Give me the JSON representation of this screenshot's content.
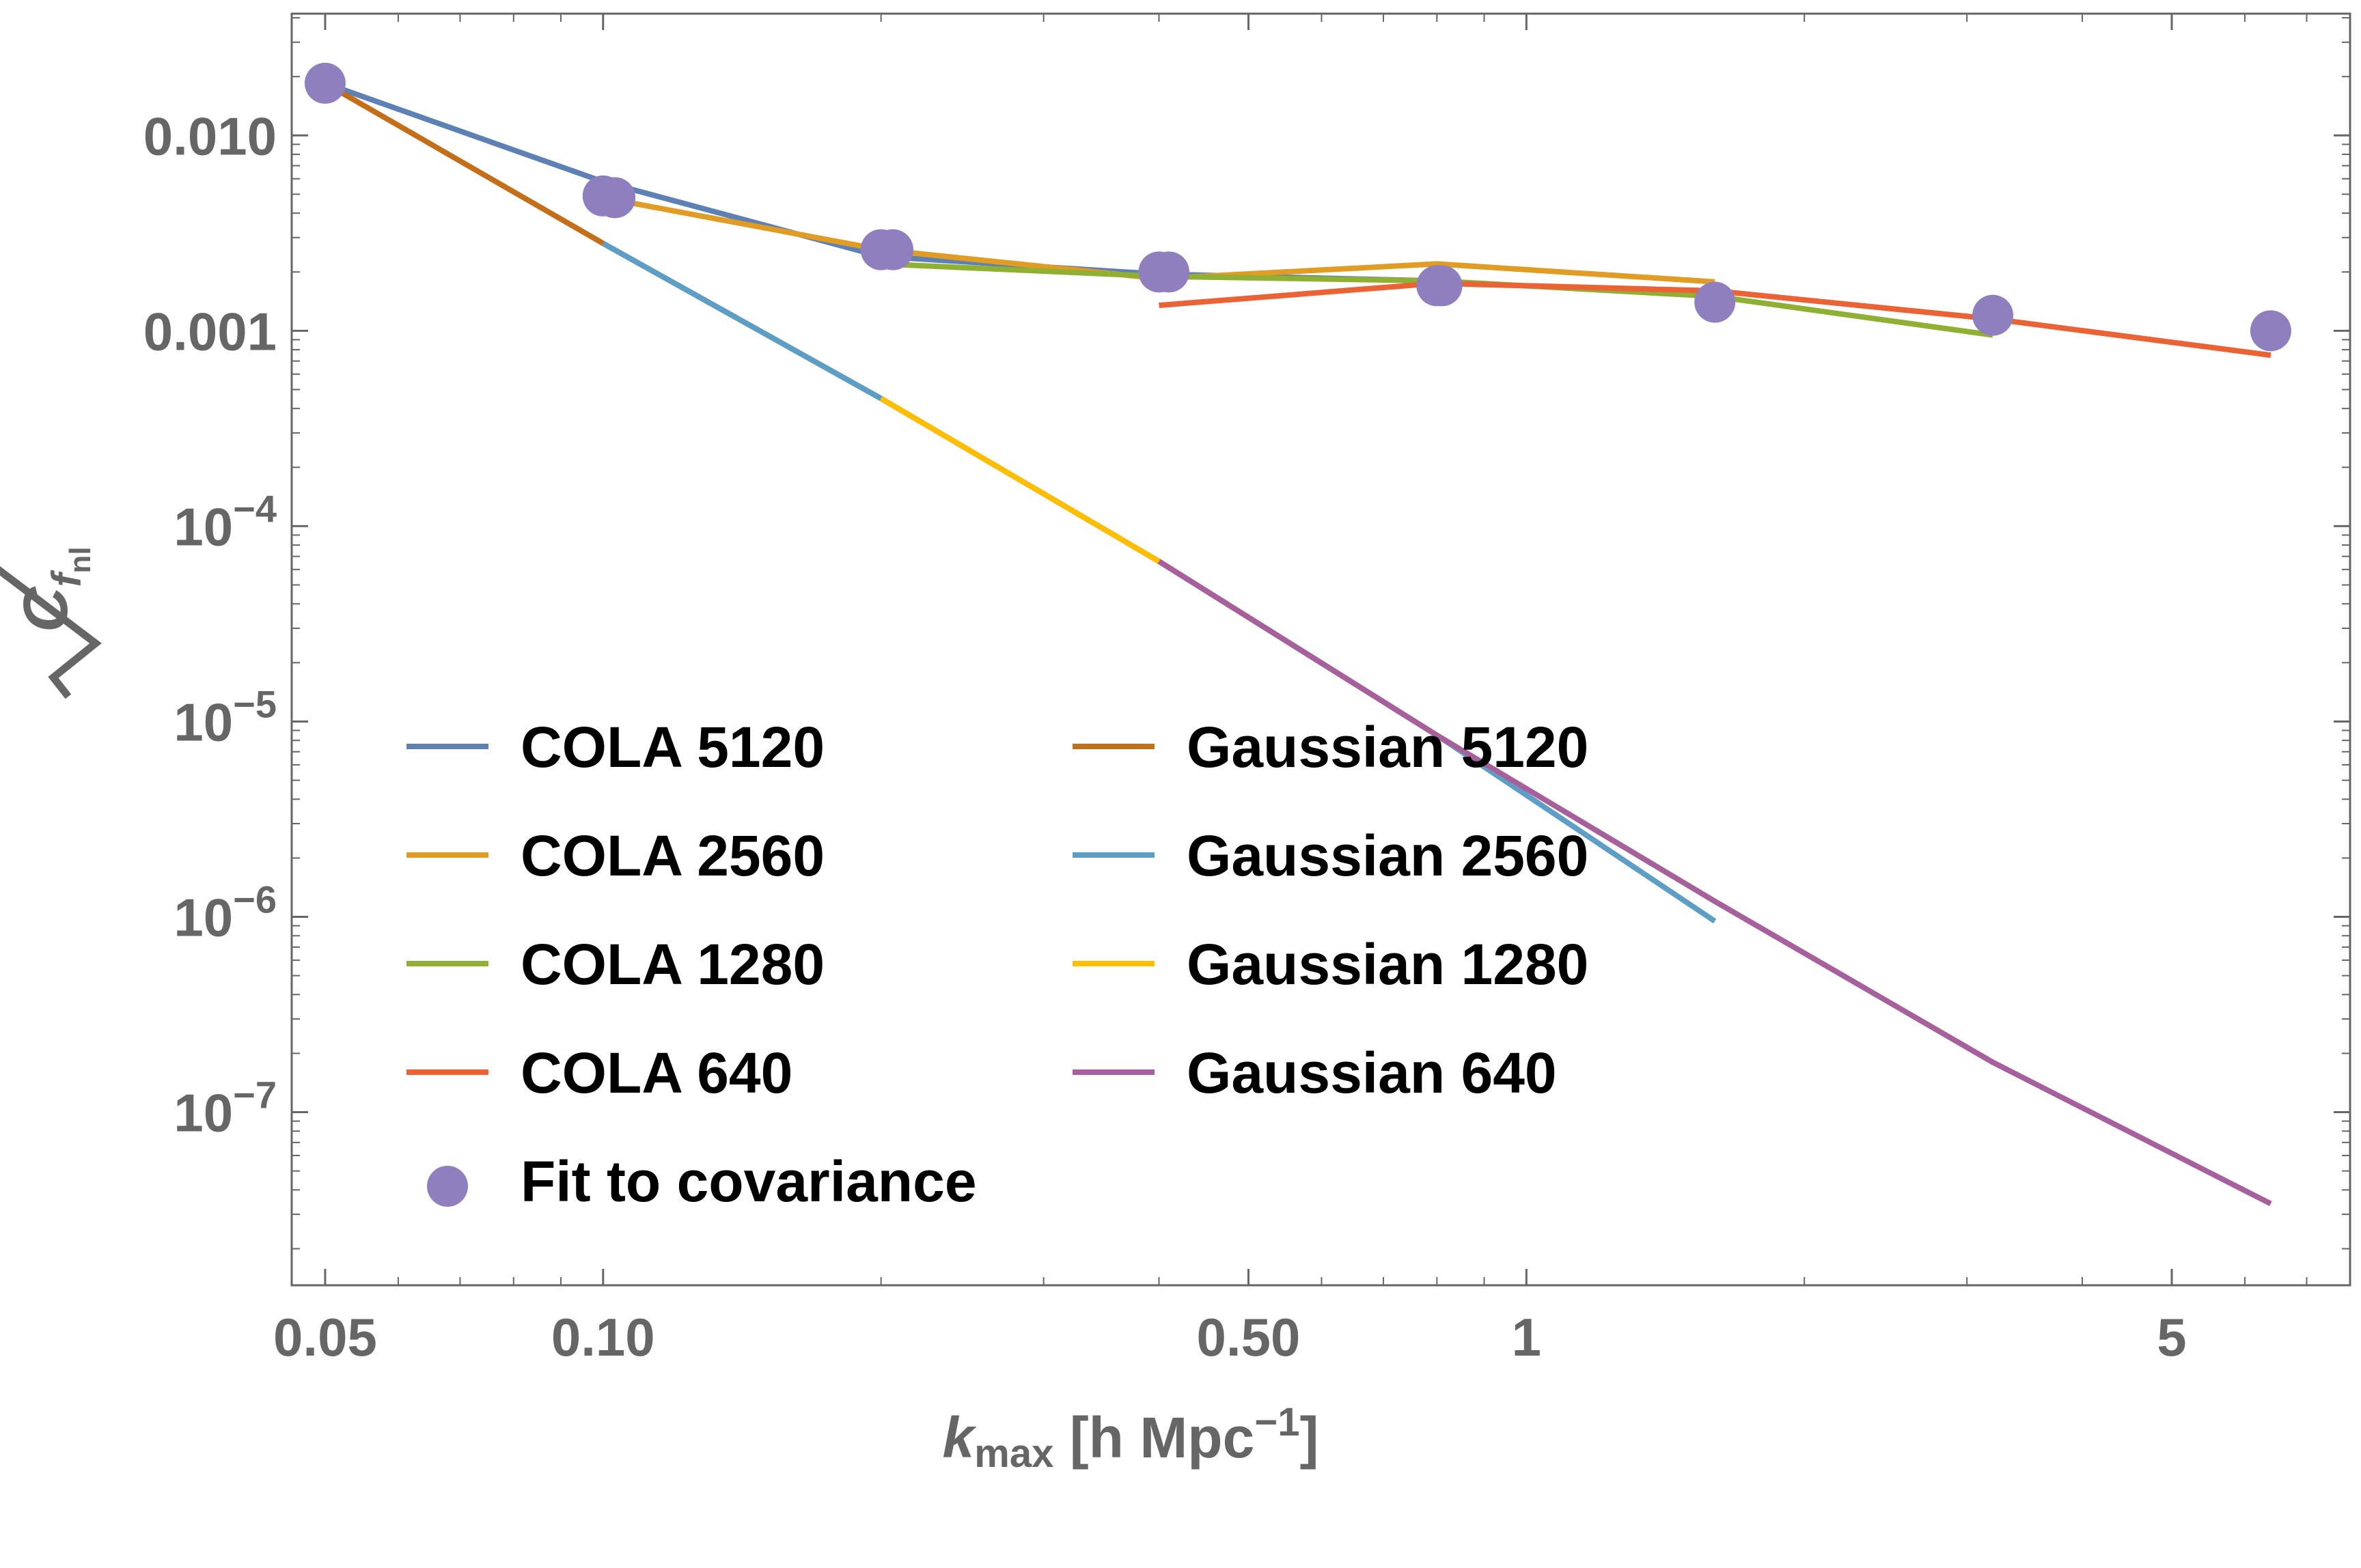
{
  "chart_data": {
    "type": "line",
    "title": "",
    "xlabel": "k_max [h Mpc^-1]",
    "ylabel": "sqrt(C_fnl)",
    "xlabel_parts": {
      "k": "k",
      "sub": "max",
      "unit": " [h Mpc",
      "sup": "−1",
      "close": "]"
    },
    "ylabel_parts": {
      "c": "C",
      "sub1": "f",
      "sub2": "nl"
    },
    "x_scale": "log",
    "y_scale": "log",
    "xlim": [
      0.046,
      7.8
    ],
    "ylim": [
      1.3e-08,
      0.042
    ],
    "grid": false,
    "legend_position": "lower-left",
    "x_ticks": [
      {
        "value": 0.05,
        "label": "0.05"
      },
      {
        "value": 0.1,
        "label": "0.10"
      },
      {
        "value": 0.5,
        "label": "0.50"
      },
      {
        "value": 1,
        "label": "1"
      },
      {
        "value": 5,
        "label": "5"
      }
    ],
    "y_ticks": [
      {
        "value": 0.01,
        "plain": "0.010"
      },
      {
        "value": 0.001,
        "plain": "0.001"
      },
      {
        "value": 0.0001,
        "base": "10",
        "exp": "−4"
      },
      {
        "value": 1e-05,
        "base": "10",
        "exp": "−5"
      },
      {
        "value": 1e-06,
        "base": "10",
        "exp": "−6"
      },
      {
        "value": 1e-07,
        "base": "10",
        "exp": "−7"
      }
    ],
    "series": [
      {
        "name": "COLA 5120",
        "color": "#5e81b5",
        "x": [
          0.05,
          0.1,
          0.2,
          0.4,
          0.8
        ],
        "y": [
          0.0185,
          0.0058,
          0.0024,
          0.00195,
          0.0018
        ]
      },
      {
        "name": "COLA 2560",
        "color": "#e19c24",
        "x": [
          0.1,
          0.2,
          0.4,
          0.8,
          1.6
        ],
        "y": [
          0.0048,
          0.0026,
          0.00185,
          0.0022,
          0.00178
        ]
      },
      {
        "name": "COLA 1280",
        "color": "#8fb032",
        "x": [
          0.2,
          0.4,
          0.8,
          1.6,
          3.2
        ],
        "y": [
          0.0022,
          0.0019,
          0.0018,
          0.0015,
          0.00095
        ]
      },
      {
        "name": "COLA 640",
        "color": "#eb6235",
        "x": [
          0.4,
          0.8,
          1.6,
          3.2,
          6.4
        ],
        "y": [
          0.00135,
          0.00175,
          0.0016,
          0.00115,
          0.00075
        ]
      },
      {
        "name": "Gaussian 5120",
        "color": "#c56e1a",
        "x": [
          0.05,
          0.1,
          0.2,
          0.4,
          0.8
        ],
        "y": [
          0.0185,
          0.0028,
          0.00045,
          6.6e-05,
          8.5e-06
        ]
      },
      {
        "name": "Gaussian 2560",
        "color": "#5d9ec7",
        "x": [
          0.1,
          0.2,
          0.4,
          0.8,
          1.6
        ],
        "y": [
          0.0028,
          0.00045,
          6.6e-05,
          8.5e-06,
          9.5e-07
        ]
      },
      {
        "name": "Gaussian 1280",
        "color": "#ffbf00",
        "x": [
          0.2,
          0.4,
          0.8,
          1.6,
          3.2
        ],
        "y": [
          0.00045,
          6.6e-05,
          8.5e-06,
          1.2e-06,
          1.8e-07
        ]
      },
      {
        "name": "Gaussian 640",
        "color": "#a5609d",
        "x": [
          0.4,
          0.8,
          1.6,
          3.2,
          6.4
        ],
        "y": [
          6.6e-05,
          8.5e-06,
          1.2e-06,
          1.8e-07,
          3.4e-08
        ]
      }
    ],
    "points": {
      "name": "Fit to covariance",
      "color": "#8f7fbe",
      "x": [
        0.05,
        0.1,
        0.103,
        0.2,
        0.206,
        0.4,
        0.41,
        0.8,
        0.81,
        1.6,
        3.2,
        6.4
      ],
      "y": [
        0.0185,
        0.0049,
        0.0048,
        0.0026,
        0.0026,
        0.002,
        0.002,
        0.0017,
        0.0017,
        0.0014,
        0.0012,
        0.001
      ]
    },
    "legend_columns": [
      [
        "COLA 5120",
        "COLA 2560",
        "COLA 1280",
        "COLA 640",
        "Fit to covariance"
      ],
      [
        "Gaussian 5120",
        "Gaussian 2560",
        "Gaussian 1280",
        "Gaussian 640"
      ]
    ]
  }
}
